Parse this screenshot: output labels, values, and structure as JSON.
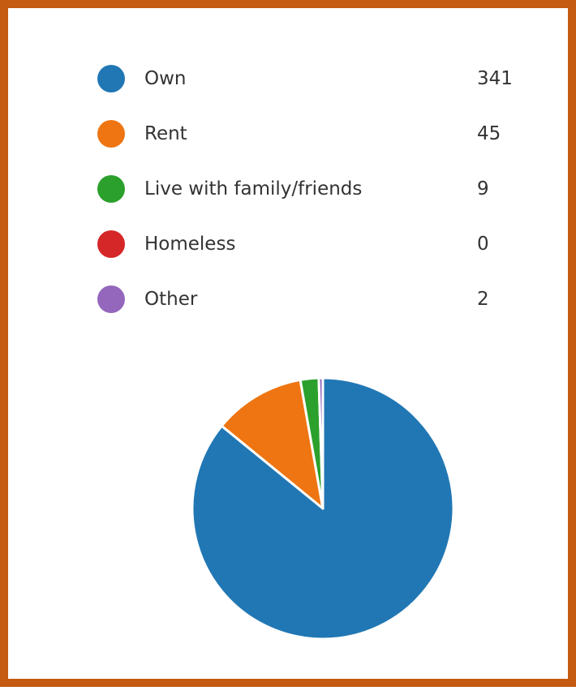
{
  "chart_data": {
    "type": "pie",
    "categories": [
      "Own",
      "Rent",
      "Live with family/friends",
      "Homeless",
      "Other"
    ],
    "values": [
      341,
      45,
      9,
      0,
      2
    ],
    "colors": [
      "#2177b4",
      "#ee7511",
      "#2ca02c",
      "#d62728",
      "#9467bd"
    ],
    "legend_position": "top",
    "start_angle": "12 o'clock",
    "direction": "clockwise"
  },
  "frame": {
    "border_color": "#c55a11"
  }
}
